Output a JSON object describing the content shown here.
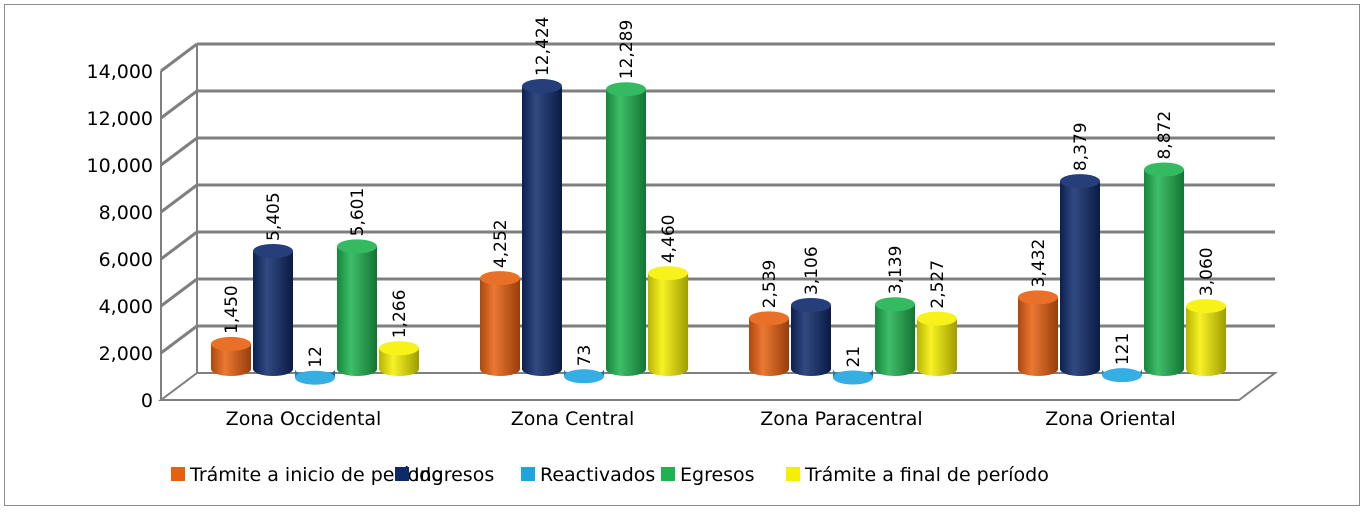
{
  "chart_data": {
    "type": "bar",
    "categories": [
      "Zona Occidental",
      "Zona Central",
      "Zona Paracentral",
      "Zona Oriental"
    ],
    "series": [
      {
        "name": "Trámite a inicio de período",
        "color": "#E8600F",
        "values": [
          1450,
          4252,
          2539,
          3432
        ]
      },
      {
        "name": "Ingresos",
        "color": "#0E2A6B",
        "values": [
          5405,
          12424,
          3106,
          8379
        ]
      },
      {
        "name": "Reactivados",
        "color": "#1EA5E0",
        "values": [
          12,
          73,
          21,
          121
        ]
      },
      {
        "name": "Egresos",
        "color": "#1DB34F",
        "values": [
          5601,
          12289,
          3139,
          8872
        ]
      },
      {
        "name": "Trámite a final de período",
        "color": "#F5F000",
        "values": [
          1266,
          4460,
          2527,
          3060
        ]
      }
    ],
    "value_labels": [
      [
        "1,450",
        "4,252",
        "2,539",
        "3,432"
      ],
      [
        "5,405",
        "12,424",
        "3,106",
        "8,379"
      ],
      [
        "12",
        "73",
        "21",
        "121"
      ],
      [
        "5,601",
        "12,289",
        "3,139",
        "8,872"
      ],
      [
        "1,266",
        "4,460",
        "2,527",
        "3,060"
      ]
    ],
    "y_ticks": [
      "0",
      "2,000",
      "4,000",
      "6,000",
      "8,000",
      "10,000",
      "12,000",
      "14,000"
    ],
    "ylim": [
      0,
      14000
    ],
    "grid": true,
    "legend_position": "bottom",
    "title": "",
    "xlabel": "",
    "ylabel": ""
  }
}
